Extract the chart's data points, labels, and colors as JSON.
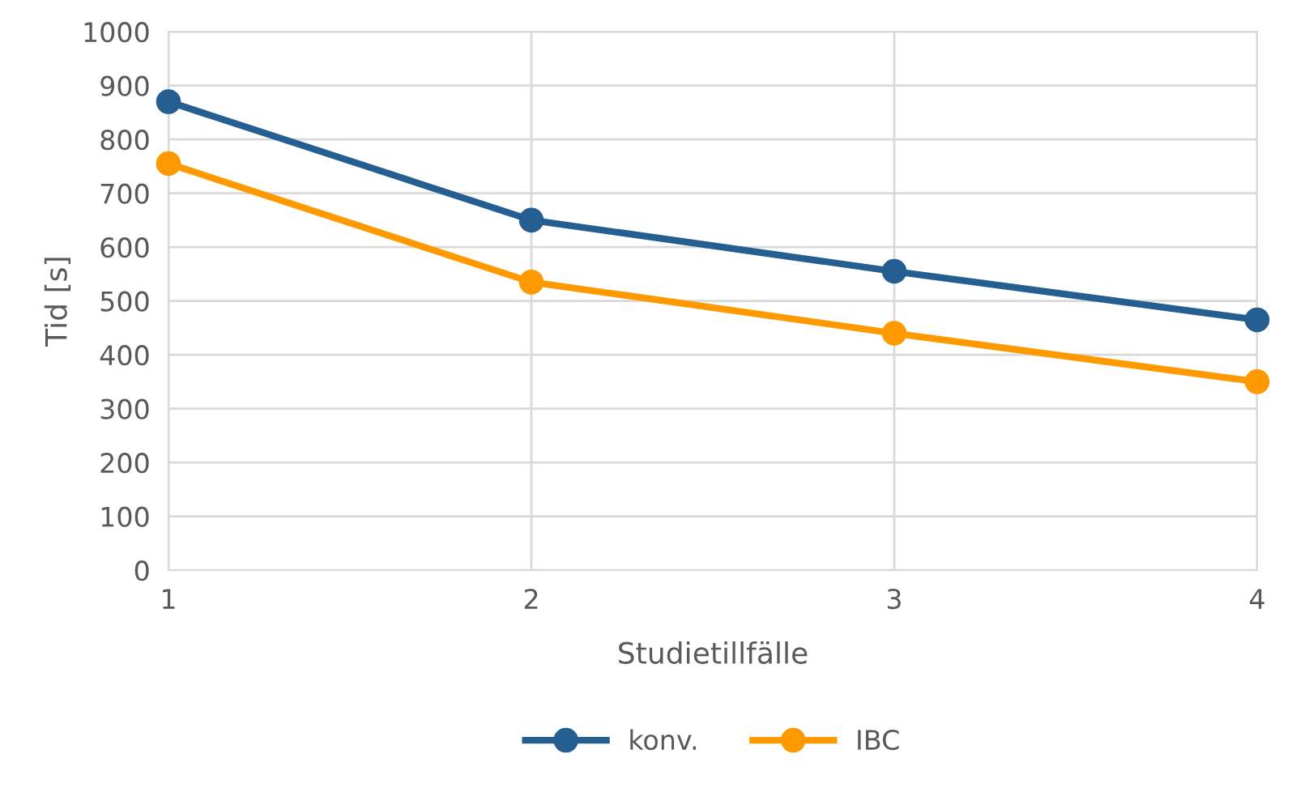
{
  "chart_data": {
    "type": "line",
    "xlabel": "Studietillfälle",
    "ylabel": "Tid [s]",
    "x": [
      1,
      2,
      3,
      4
    ],
    "series": [
      {
        "name": "konv.",
        "color": "#255e91",
        "values": [
          870,
          650,
          555,
          465
        ]
      },
      {
        "name": "IBC",
        "color": "#ff9900",
        "values": [
          755,
          535,
          440,
          350
        ]
      }
    ],
    "xlim": [
      1,
      4
    ],
    "xticks": [
      1,
      2,
      3,
      4
    ],
    "ylim": [
      0,
      1000
    ],
    "yticks": [
      0,
      100,
      200,
      300,
      400,
      500,
      600,
      700,
      800,
      900,
      1000
    ],
    "grid": true,
    "legend": "bottom",
    "marker": "circle",
    "line_style": "solid"
  }
}
